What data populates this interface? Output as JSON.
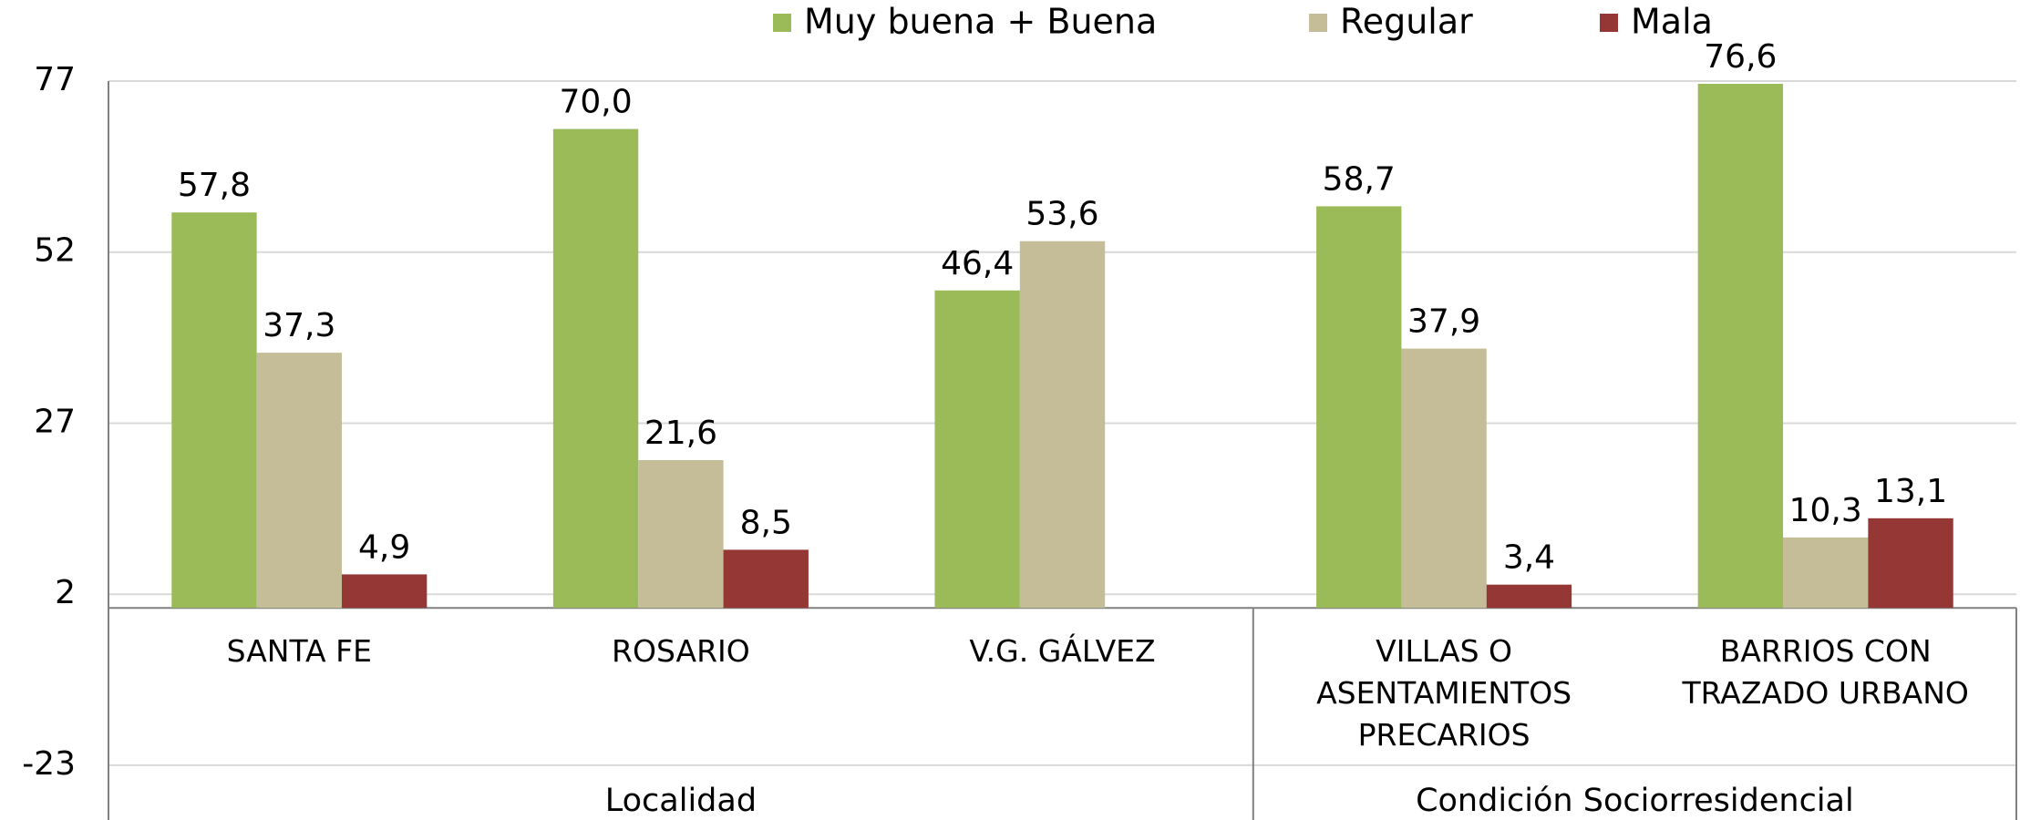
{
  "chart_data": {
    "type": "bar",
    "groups": [
      {
        "name": "Localidad",
        "categories": [
          "SANTA FE",
          "ROSARIO",
          "V.G. GÁLVEZ"
        ]
      },
      {
        "name": "Condición Sociorresidencial",
        "categories": [
          "VILLAS O ASENTAMIENTOS PRECARIOS",
          "BARRIOS CON TRAZADO URBANO"
        ]
      }
    ],
    "series": [
      {
        "name": "Muy buena + Buena",
        "color": "#9bbb59",
        "values": [
          57.8,
          70.0,
          46.4,
          58.7,
          76.6
        ],
        "value_labels": [
          "57,8",
          "70,0",
          "46,4",
          "58,7",
          "76,6"
        ]
      },
      {
        "name": "Regular",
        "color": "#c4bd97",
        "values": [
          37.3,
          21.6,
          53.6,
          37.9,
          10.3
        ],
        "value_labels": [
          "37,3",
          "21,6",
          "53,6",
          "37,9",
          "10,3"
        ]
      },
      {
        "name": "Mala",
        "color": "#953735",
        "values": [
          4.9,
          8.5,
          null,
          3.4,
          13.1
        ],
        "value_labels": [
          "4,9",
          "8,5",
          null,
          "3,4",
          "13,1"
        ]
      }
    ],
    "ylim": [
      -31,
      77
    ],
    "yticks": [
      -23,
      2,
      27,
      52,
      77
    ],
    "grid": true,
    "legend": "top"
  }
}
